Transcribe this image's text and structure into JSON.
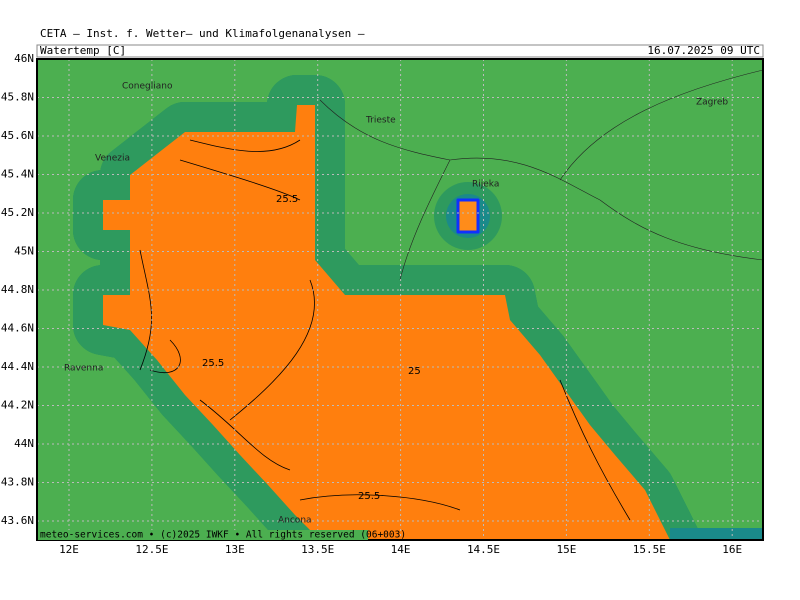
{
  "header": {
    "org": "CETA – Inst. f. Wetter– und Klimafolgenanalysen –",
    "variable": "Watertemp [C]",
    "datetime": "16.07.2025 09 UTC"
  },
  "axes": {
    "lat_labels": [
      "46N",
      "45.8N",
      "45.6N",
      "45.4N",
      "45.2N",
      "45N",
      "44.8N",
      "44.6N",
      "44.4N",
      "44.2N",
      "44N",
      "43.8N",
      "43.6N"
    ],
    "lon_labels": [
      "12E",
      "12.5E",
      "13E",
      "13.5E",
      "14E",
      "14.5E",
      "15E",
      "15.5E",
      "16E"
    ]
  },
  "cities": [
    "Conegliano",
    "Venezia",
    "Trieste",
    "Rijeka",
    "Zagreb",
    "Ravenna",
    "Ancona"
  ],
  "contour_labels": [
    "25.5",
    "25.5",
    "25",
    "25.5"
  ],
  "footer": "meteo-services.com • (c)2025 IWKF • All rights reserved (06+003)"
}
